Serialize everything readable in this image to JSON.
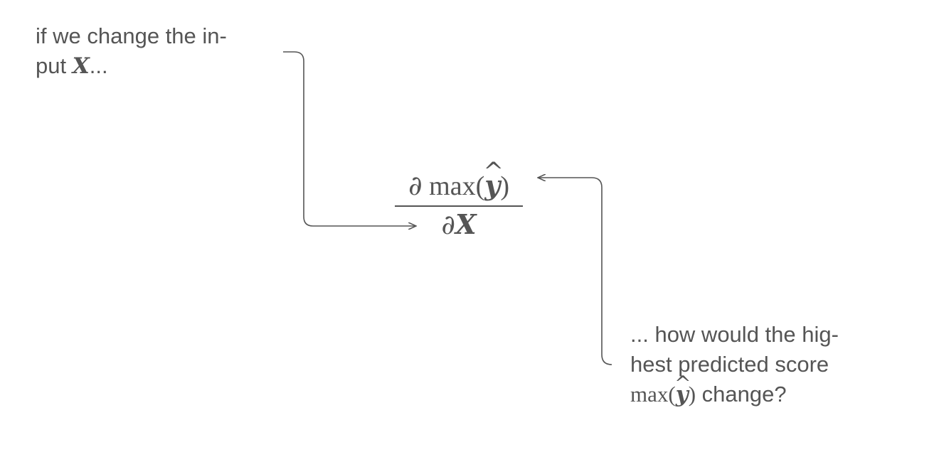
{
  "annotations": {
    "top": {
      "line1": "if we change the in-",
      "line2_prefix": "put ",
      "line2_symbol": "X",
      "line2_suffix": "..."
    },
    "bottom": {
      "line1": "... how would the hig-",
      "line2": "hest predicted score",
      "line3_fn": "max(",
      "line3_symbol": "y",
      "line3_close": ")",
      "line3_suffix": " change?"
    }
  },
  "formula": {
    "numerator": {
      "partial": "∂",
      "fn": " max(",
      "symbol": "y",
      "close": ")"
    },
    "denominator": {
      "partial": "∂",
      "symbol": "X"
    }
  },
  "colors": {
    "text": "#555555",
    "line": "#555555",
    "background": "#ffffff"
  }
}
